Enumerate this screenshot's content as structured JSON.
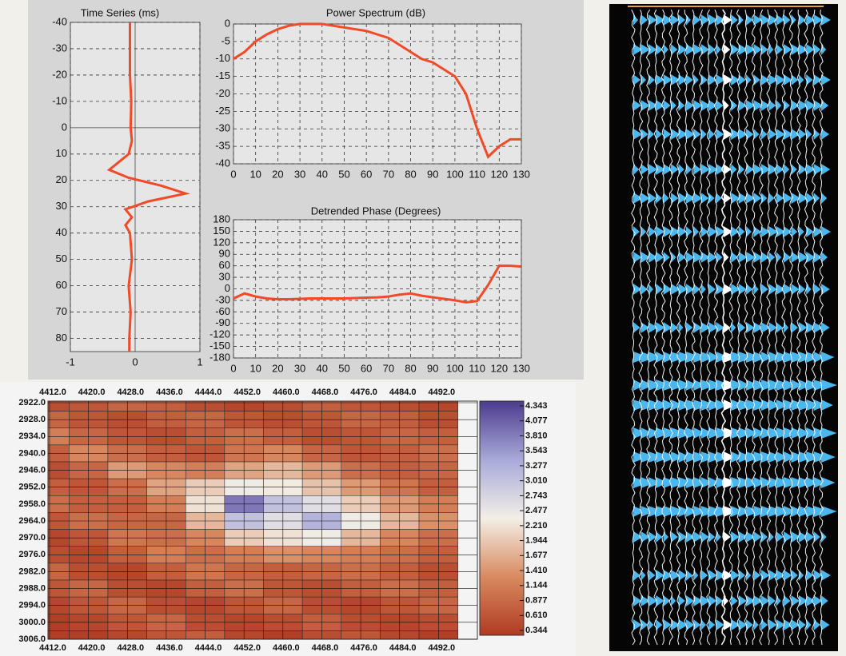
{
  "chart_data": [
    {
      "type": "vline",
      "title": "Time Series (ms)",
      "color": "#f04a28",
      "x": [
        -0.08,
        -0.08,
        -0.08,
        -0.06,
        -0.07,
        -0.05,
        -0.1,
        -0.25,
        -0.4,
        -0.1,
        0.4,
        0.78,
        0.2,
        -0.15,
        -0.05,
        -0.15,
        -0.08,
        -0.05,
        -0.1,
        -0.07,
        -0.09,
        -0.09
      ],
      "y": [
        -40,
        -30,
        -20,
        -10,
        0,
        5,
        10,
        13,
        16,
        19,
        22,
        25,
        28,
        31,
        34,
        37,
        40,
        50,
        60,
        70,
        80,
        85
      ],
      "xlim": [
        -1,
        1
      ],
      "xticks": [
        -1,
        0,
        1
      ],
      "ylim": [
        -40,
        85
      ],
      "yticks": [
        -40,
        -30,
        -20,
        -10,
        0,
        10,
        20,
        30,
        40,
        50,
        60,
        70,
        80
      ],
      "invert_y": true,
      "grid": true
    },
    {
      "type": "line",
      "title": "Power Spectrum (dB)",
      "color": "#f04a28",
      "x": [
        0,
        5,
        10,
        15,
        20,
        25,
        30,
        35,
        40,
        45,
        50,
        55,
        60,
        65,
        70,
        75,
        80,
        85,
        90,
        95,
        100,
        105,
        110,
        115,
        120,
        125,
        130
      ],
      "values": [
        -10,
        -8,
        -5,
        -3,
        -1.5,
        -0.5,
        0,
        0,
        0,
        -0.5,
        -1,
        -1.5,
        -2,
        -3,
        -4,
        -6,
        -8,
        -10,
        -11,
        -13,
        -15,
        -20,
        -30,
        -38,
        -35,
        -33,
        -33
      ],
      "xlim": [
        0,
        130
      ],
      "xticks": [
        0,
        10,
        20,
        30,
        40,
        50,
        60,
        70,
        80,
        90,
        100,
        110,
        120,
        130
      ],
      "ylim": [
        -40,
        0
      ],
      "yticks": [
        0,
        -5,
        -10,
        -15,
        -20,
        -25,
        -30,
        -35,
        -40
      ],
      "grid": true
    },
    {
      "type": "line",
      "title": "Detrended Phase (Degrees)",
      "color": "#f04a28",
      "x": [
        0,
        5,
        10,
        15,
        20,
        25,
        30,
        35,
        40,
        45,
        50,
        55,
        60,
        65,
        70,
        75,
        80,
        85,
        90,
        95,
        100,
        105,
        110,
        115,
        120,
        125,
        130
      ],
      "values": [
        -25,
        -12,
        -20,
        -25,
        -27,
        -27,
        -26,
        -25,
        -25,
        -25,
        -25,
        -24,
        -23,
        -22,
        -20,
        -15,
        -12,
        -18,
        -22,
        -26,
        -30,
        -35,
        -32,
        10,
        60,
        60,
        58
      ],
      "xlim": [
        0,
        130
      ],
      "xticks": [
        0,
        10,
        20,
        30,
        40,
        50,
        60,
        70,
        80,
        90,
        100,
        110,
        120,
        130
      ],
      "ylim": [
        -180,
        180
      ],
      "yticks": [
        180,
        150,
        120,
        90,
        60,
        30,
        0,
        -30,
        -60,
        -90,
        -120,
        -150,
        -180
      ],
      "grid": true
    },
    {
      "type": "heatmap",
      "xticks": [
        {
          "value": 4412,
          "label": "4412.0"
        },
        {
          "value": 4420,
          "label": "4420.0"
        },
        {
          "value": 4428,
          "label": "4428.0"
        },
        {
          "value": 4436,
          "label": "4436.0"
        },
        {
          "value": 4444,
          "label": "4444.0"
        },
        {
          "value": 4452,
          "label": "4452.0"
        },
        {
          "value": 4460,
          "label": "4460.0"
        },
        {
          "value": 4468,
          "label": "4468.0"
        },
        {
          "value": 4476,
          "label": "4476.0"
        },
        {
          "value": 4484,
          "label": "4484.0"
        },
        {
          "value": 4492,
          "label": "4492.0"
        }
      ],
      "yticks": [
        {
          "value": 2922,
          "label": "2922.0"
        },
        {
          "value": 2928,
          "label": "2928.0"
        },
        {
          "value": 2934,
          "label": "2934.0"
        },
        {
          "value": 2940,
          "label": "2940.0"
        },
        {
          "value": 2946,
          "label": "2946.0"
        },
        {
          "value": 2952,
          "label": "2952.0"
        },
        {
          "value": 2958,
          "label": "2958.0"
        },
        {
          "value": 2964,
          "label": "2964.0"
        },
        {
          "value": 2970,
          "label": "2970.0"
        },
        {
          "value": 2976,
          "label": "2976.0"
        },
        {
          "value": 2982,
          "label": "2982.0"
        },
        {
          "value": 2988,
          "label": "2988.0"
        },
        {
          "value": 2994,
          "label": "2994.0"
        },
        {
          "value": 3000,
          "label": "3000.0"
        },
        {
          "value": 3006,
          "label": "3006.0"
        }
      ],
      "xlim": [
        4412,
        4500
      ],
      "ylim": [
        2922,
        3006
      ],
      "z": [
        [
          0.6,
          0.7,
          0.9,
          0.8,
          0.6,
          0.5,
          0.6,
          0.8,
          0.7,
          0.6,
          0.5
        ],
        [
          0.9,
          0.7,
          0.6,
          0.8,
          0.9,
          0.7,
          0.6,
          0.7,
          0.9,
          0.8,
          0.6
        ],
        [
          1.2,
          0.9,
          0.7,
          0.6,
          0.8,
          1.0,
          0.8,
          0.6,
          0.7,
          0.9,
          0.8
        ],
        [
          0.8,
          1.3,
          1.0,
          0.8,
          0.7,
          1.1,
          1.3,
          0.9,
          0.7,
          0.8,
          1.0
        ],
        [
          0.6,
          0.9,
          1.5,
          1.3,
          1.2,
          1.6,
          1.8,
          1.5,
          1.0,
          0.8,
          0.9
        ],
        [
          0.8,
          0.7,
          1.0,
          1.6,
          2.0,
          2.4,
          2.3,
          1.9,
          1.5,
          1.1,
          0.8
        ],
        [
          1.0,
          0.8,
          0.8,
          1.2,
          2.2,
          3.8,
          3.0,
          2.6,
          2.0,
          1.5,
          1.2
        ],
        [
          0.7,
          1.0,
          0.9,
          0.9,
          1.8,
          3.0,
          2.6,
          3.2,
          2.4,
          1.8,
          1.4
        ],
        [
          0.5,
          0.7,
          1.1,
          1.0,
          1.3,
          2.0,
          2.2,
          2.4,
          1.8,
          1.3,
          1.0
        ],
        [
          0.6,
          0.5,
          0.8,
          1.2,
          1.0,
          1.2,
          1.4,
          1.3,
          1.2,
          1.0,
          0.8
        ],
        [
          0.9,
          0.6,
          0.5,
          0.8,
          1.1,
          0.9,
          0.8,
          0.9,
          1.0,
          0.8,
          0.6
        ],
        [
          0.7,
          0.9,
          0.6,
          0.5,
          0.8,
          1.0,
          0.7,
          0.6,
          0.8,
          1.0,
          0.8
        ],
        [
          0.5,
          0.7,
          0.9,
          0.6,
          0.5,
          0.7,
          0.9,
          0.6,
          0.5,
          0.7,
          0.9
        ],
        [
          0.4,
          0.5,
          0.7,
          0.9,
          0.6,
          0.5,
          0.6,
          0.8,
          0.6,
          0.5,
          0.6
        ],
        [
          0.4,
          0.4,
          0.5,
          0.7,
          0.8,
          0.5,
          0.4,
          0.6,
          0.7,
          0.5,
          0.4
        ]
      ],
      "zlim": [
        0.344,
        4.343
      ],
      "zticks": [
        4.343,
        4.077,
        {
          "value": 3.81,
          "label": "3.810"
        },
        3.543,
        3.277,
        {
          "value": 3.01,
          "label": "3.010"
        },
        2.743,
        2.477,
        {
          "value": 2.21,
          "label": "2.210"
        },
        1.944,
        1.677,
        {
          "value": 1.41,
          "label": "1.410"
        },
        1.144,
        0.877,
        {
          "value": 0.61,
          "label": "0.610"
        },
        0.344
      ],
      "colormap": [
        "#b03a22",
        "#d98a60",
        "#f3efe6",
        "#a9a9d9",
        "#4c3b8e"
      ]
    }
  ]
}
